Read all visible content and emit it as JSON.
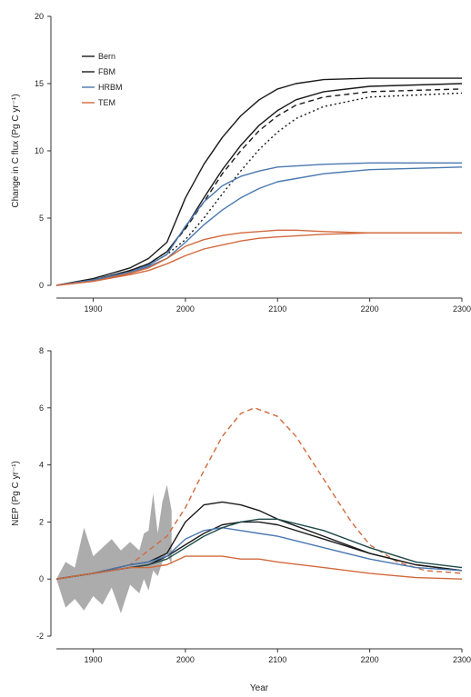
{
  "chart_data": [
    {
      "type": "line",
      "title": "",
      "xlabel": "",
      "ylabel": "Change in C flux (Pg C yr⁻¹)",
      "xlim": [
        1860,
        2300
      ],
      "ylim": [
        0,
        20
      ],
      "xticks": [
        1900,
        2000,
        2100,
        2200,
        2300
      ],
      "yticks": [
        0,
        5,
        10,
        15,
        20
      ],
      "legend": {
        "position": "top-left",
        "entries": [
          "Bern",
          "FBM",
          "HRBM",
          "TEM"
        ]
      },
      "grid": false,
      "series": [
        {
          "name": "Bern",
          "color": "#1a1a1a",
          "style": "solid",
          "x": [
            1860,
            1900,
            1940,
            1960,
            1980,
            2000,
            2020,
            2040,
            2060,
            2080,
            2100,
            2120,
            2150,
            2200,
            2300
          ],
          "y": [
            0,
            0.5,
            1.3,
            2.0,
            3.2,
            6.5,
            9.0,
            11.0,
            12.6,
            13.8,
            14.6,
            15.0,
            15.3,
            15.4,
            15.4
          ]
        },
        {
          "name": "Bern",
          "color": "#1a1a1a",
          "style": "solid",
          "x": [
            1860,
            1900,
            1940,
            1960,
            1980,
            2000,
            2020,
            2040,
            2060,
            2080,
            2100,
            2120,
            2150,
            2200,
            2300
          ],
          "y": [
            0,
            0.4,
            1.1,
            1.6,
            2.5,
            4.3,
            6.5,
            8.6,
            10.4,
            11.9,
            13.0,
            13.8,
            14.4,
            14.8,
            15.0
          ]
        },
        {
          "name": "FBM",
          "color": "#1a1a1a",
          "style": "dashed",
          "x": [
            1860,
            1900,
            1940,
            1960,
            1980,
            2000,
            2020,
            2040,
            2060,
            2080,
            2100,
            2120,
            2150,
            2200,
            2300
          ],
          "y": [
            0,
            0.4,
            1.1,
            1.6,
            2.5,
            4.2,
            6.2,
            8.3,
            10.0,
            11.5,
            12.6,
            13.4,
            14.0,
            14.4,
            14.6
          ]
        },
        {
          "name": "FBM",
          "color": "#1a1a1a",
          "style": "dotted",
          "x": [
            1860,
            1900,
            1940,
            1960,
            1980,
            2000,
            2020,
            2040,
            2060,
            2080,
            2100,
            2120,
            2150,
            2200,
            2300
          ],
          "y": [
            0,
            0.4,
            1.0,
            1.5,
            2.3,
            3.4,
            5.0,
            6.8,
            8.5,
            10.1,
            11.4,
            12.4,
            13.3,
            14.0,
            14.3
          ]
        },
        {
          "name": "HRBM",
          "color": "#4a78b0",
          "style": "solid",
          "x": [
            1860,
            1900,
            1940,
            1960,
            1980,
            2000,
            2020,
            2040,
            2060,
            2080,
            2100,
            2150,
            2200,
            2300
          ],
          "y": [
            0,
            0.4,
            1.0,
            1.5,
            2.3,
            4.4,
            6.2,
            7.4,
            8.1,
            8.5,
            8.8,
            9.0,
            9.1,
            9.1
          ]
        },
        {
          "name": "HRBM",
          "color": "#4a78b0",
          "style": "solid",
          "x": [
            1860,
            1900,
            1940,
            1960,
            1980,
            2000,
            2020,
            2040,
            2060,
            2080,
            2100,
            2150,
            2200,
            2300
          ],
          "y": [
            0,
            0.4,
            0.9,
            1.4,
            2.0,
            3.2,
            4.5,
            5.6,
            6.5,
            7.2,
            7.7,
            8.3,
            8.6,
            8.8
          ]
        },
        {
          "name": "TEM",
          "color": "#d2693c",
          "style": "solid",
          "x": [
            1860,
            1900,
            1940,
            1960,
            1980,
            2000,
            2020,
            2040,
            2060,
            2080,
            2100,
            2120,
            2150,
            2200,
            2300
          ],
          "y": [
            0,
            0.3,
            0.9,
            1.3,
            2.0,
            2.9,
            3.4,
            3.7,
            3.9,
            4.0,
            4.1,
            4.1,
            4.0,
            3.9,
            3.9
          ]
        },
        {
          "name": "TEM",
          "color": "#d2693c",
          "style": "solid",
          "x": [
            1860,
            1900,
            1940,
            1960,
            1980,
            2000,
            2020,
            2040,
            2060,
            2080,
            2100,
            2150,
            2200,
            2300
          ],
          "y": [
            0,
            0.3,
            0.8,
            1.1,
            1.6,
            2.2,
            2.7,
            3.0,
            3.3,
            3.5,
            3.6,
            3.8,
            3.9,
            3.9
          ]
        }
      ]
    },
    {
      "type": "line",
      "title": "",
      "xlabel": "Year",
      "ylabel": "NEP (Pg C yr⁻¹)",
      "xlim": [
        1860,
        2300
      ],
      "ylim": [
        -2,
        8
      ],
      "xticks": [
        1900,
        2000,
        2100,
        2200,
        2300
      ],
      "yticks": [
        -2,
        0,
        2,
        4,
        6,
        8
      ],
      "grid": false,
      "band": {
        "color": "#9e9e9e",
        "x": [
          1860,
          1870,
          1880,
          1890,
          1900,
          1910,
          1920,
          1930,
          1940,
          1950,
          1955,
          1960,
          1965,
          1970,
          1975,
          1980,
          1985
        ],
        "upper": [
          0.0,
          0.6,
          0.4,
          1.8,
          0.8,
          1.1,
          1.4,
          1.0,
          1.3,
          1.0,
          1.6,
          1.7,
          3.0,
          1.6,
          2.7,
          3.3,
          2.4
        ],
        "lower": [
          0.0,
          -1.0,
          -0.7,
          -1.1,
          -0.6,
          -0.9,
          -0.3,
          -1.2,
          -0.2,
          -0.5,
          0.0,
          -0.4,
          0.3,
          0.1,
          0.6,
          0.9,
          0.5
        ]
      },
      "series": [
        {
          "name": "TEM",
          "color": "#d2693c",
          "style": "dashed",
          "x": [
            1860,
            1900,
            1940,
            1980,
            2000,
            2020,
            2040,
            2060,
            2075,
            2100,
            2120,
            2140,
            2160,
            2180,
            2200,
            2230,
            2260,
            2300
          ],
          "y": [
            0.0,
            0.2,
            0.5,
            1.5,
            2.5,
            3.8,
            5.0,
            5.8,
            6.0,
            5.7,
            5.0,
            4.0,
            3.0,
            2.0,
            1.2,
            0.6,
            0.3,
            0.2
          ]
        },
        {
          "name": "Bern",
          "color": "#1a1a1a",
          "style": "solid",
          "x": [
            1860,
            1900,
            1940,
            1960,
            1980,
            2000,
            2020,
            2040,
            2060,
            2080,
            2100,
            2150,
            2200,
            2250,
            2300
          ],
          "y": [
            0.0,
            0.2,
            0.5,
            0.6,
            0.9,
            2.0,
            2.6,
            2.7,
            2.6,
            2.4,
            2.1,
            1.5,
            0.9,
            0.5,
            0.3
          ]
        },
        {
          "name": "FBM",
          "color": "#1a1a1a",
          "style": "solid",
          "x": [
            1860,
            1900,
            1940,
            1960,
            1980,
            2000,
            2020,
            2040,
            2060,
            2080,
            2100,
            2150,
            2200,
            2250,
            2300
          ],
          "y": [
            0.0,
            0.2,
            0.4,
            0.5,
            0.8,
            1.2,
            1.6,
            1.9,
            2.0,
            2.0,
            1.9,
            1.4,
            0.9,
            0.5,
            0.3
          ]
        },
        {
          "name": "HRBM",
          "color": "#4a78b0",
          "style": "solid",
          "x": [
            1860,
            1900,
            1940,
            1960,
            1980,
            2000,
            2020,
            2040,
            2060,
            2080,
            2100,
            2150,
            2200,
            2250,
            2300
          ],
          "y": [
            0.0,
            0.2,
            0.5,
            0.6,
            0.8,
            1.4,
            1.7,
            1.8,
            1.7,
            1.6,
            1.5,
            1.1,
            0.7,
            0.4,
            0.3
          ]
        },
        {
          "name": "Bern",
          "color": "#1f4a4a",
          "style": "solid",
          "x": [
            1860,
            1900,
            1940,
            1960,
            1980,
            2000,
            2020,
            2040,
            2060,
            2080,
            2100,
            2150,
            2200,
            2250,
            2300
          ],
          "y": [
            0.0,
            0.2,
            0.4,
            0.5,
            0.7,
            1.1,
            1.5,
            1.8,
            2.0,
            2.1,
            2.1,
            1.7,
            1.1,
            0.6,
            0.4
          ]
        },
        {
          "name": "TEM",
          "color": "#d2693c",
          "style": "solid",
          "x": [
            1860,
            1900,
            1940,
            1960,
            1980,
            2000,
            2020,
            2040,
            2060,
            2080,
            2100,
            2150,
            2200,
            2250,
            2300
          ],
          "y": [
            0.0,
            0.2,
            0.4,
            0.4,
            0.5,
            0.8,
            0.8,
            0.8,
            0.7,
            0.7,
            0.6,
            0.4,
            0.2,
            0.05,
            0.0
          ]
        }
      ]
    }
  ]
}
